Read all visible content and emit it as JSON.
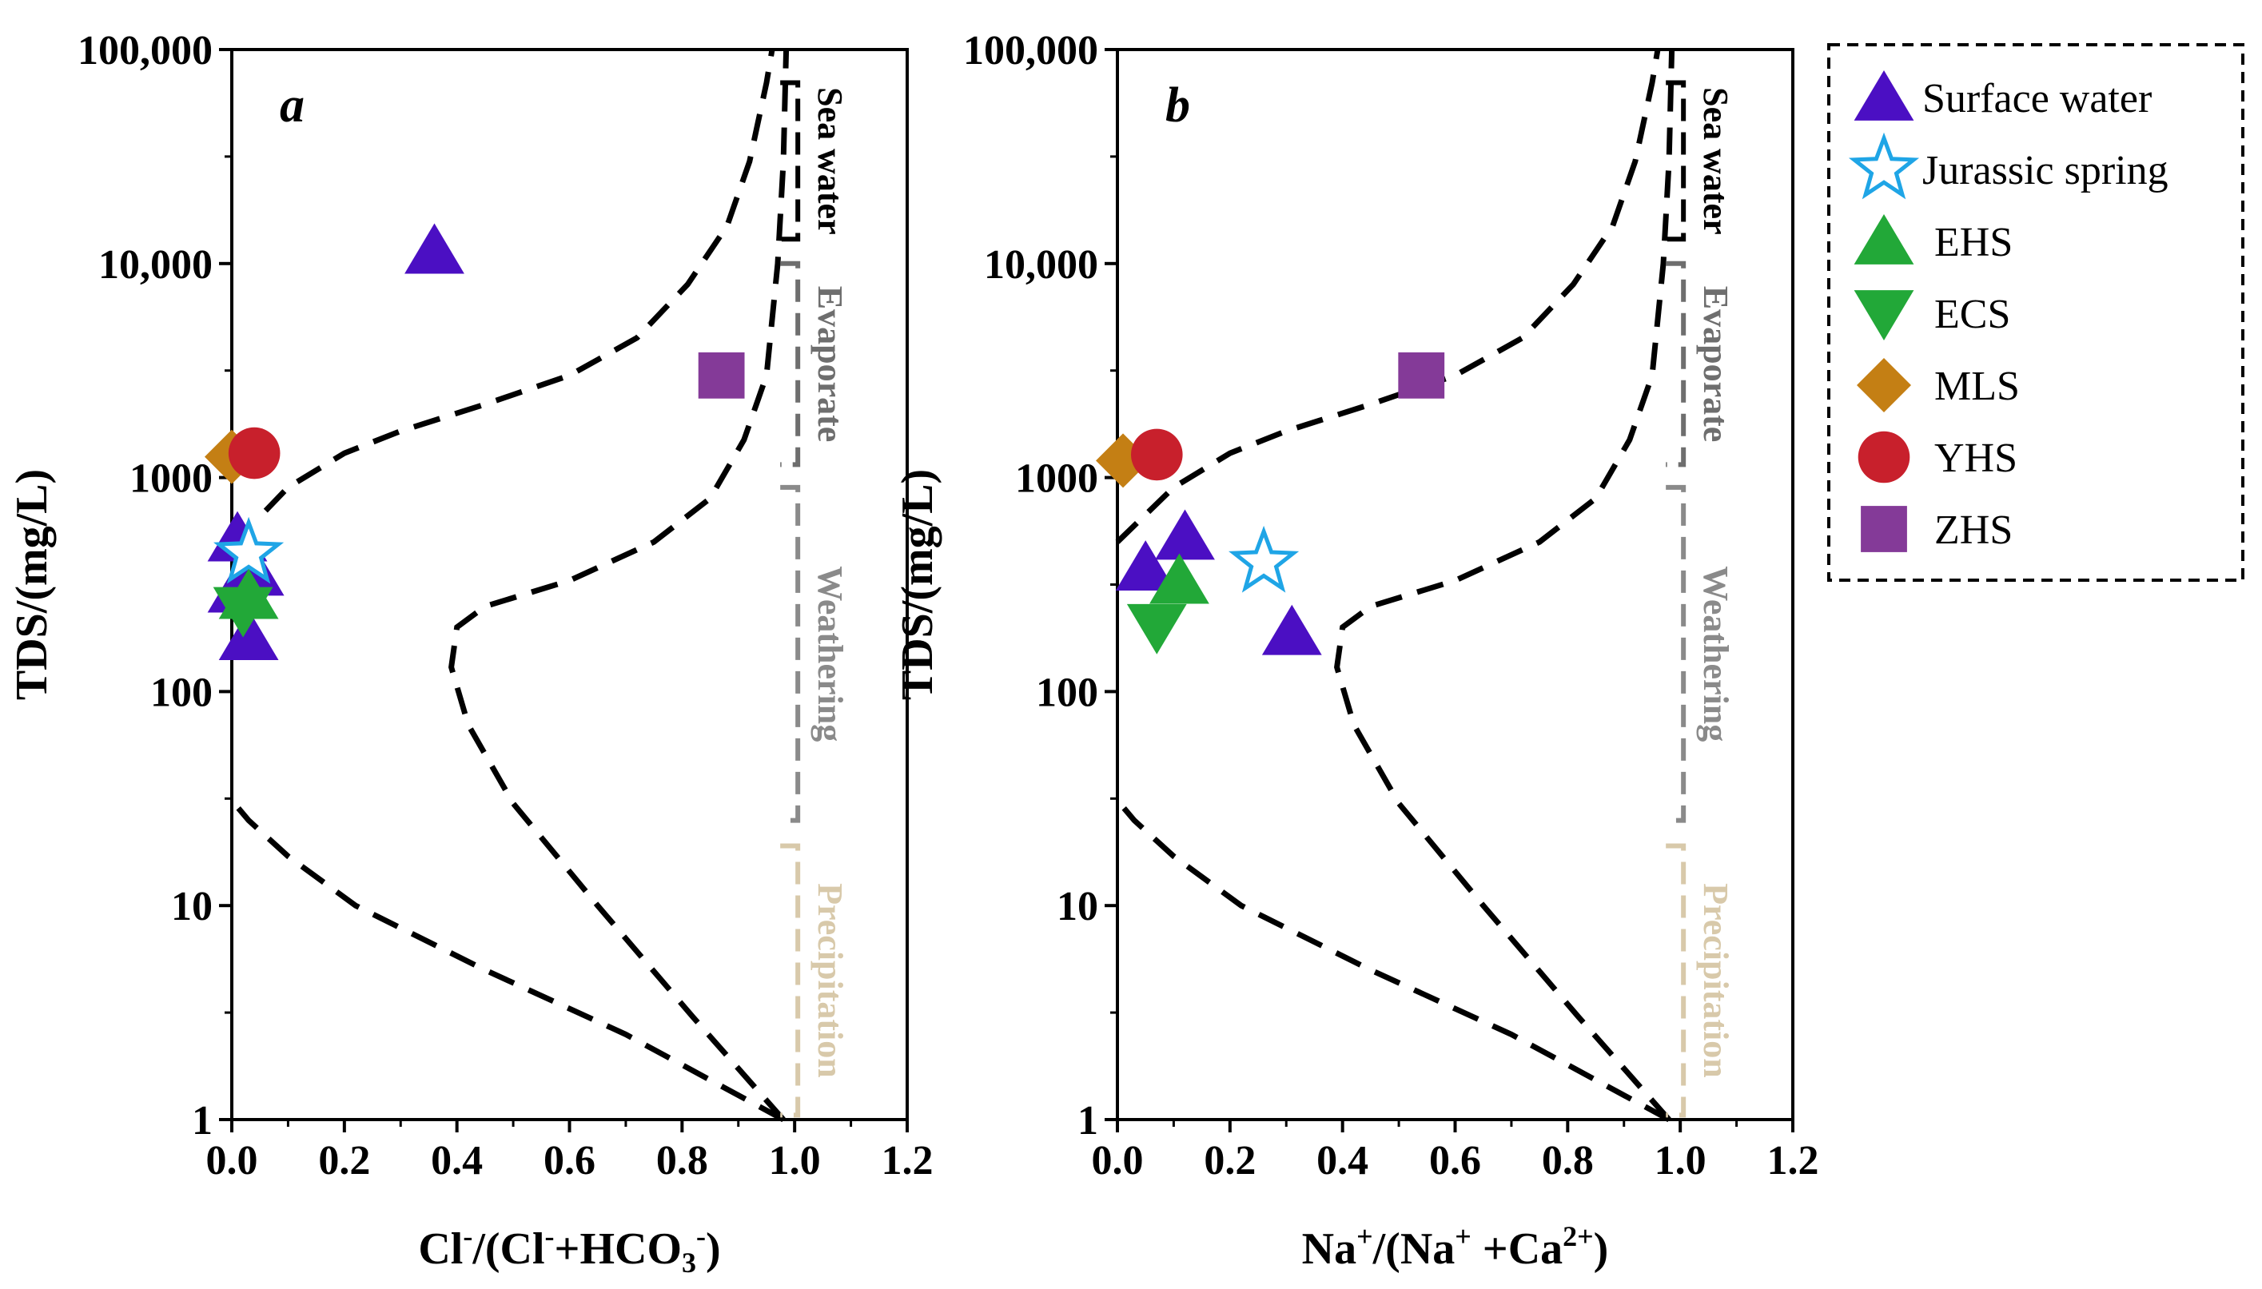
{
  "chart_data": [
    {
      "type": "scatter",
      "panel_label": "a",
      "xlabel_main": "Cl",
      "xlabel_parts": [
        "Cl",
        "-",
        "/(Cl",
        "-",
        "+HCO",
        "3",
        "-",
        ")"
      ],
      "ylabel": "TDS/(mg/L)",
      "xlim": [
        0,
        1.2
      ],
      "ylim": [
        1,
        100000
      ],
      "y_scale": "log",
      "x_ticks": [
        "0.0",
        "0.2",
        "0.4",
        "0.6",
        "0.8",
        "1.0",
        "1.2"
      ],
      "y_ticks": [
        "1",
        "10",
        "100",
        "1000",
        "10,000",
        "100,000"
      ],
      "zones": [
        "Sea water",
        "Evaporate",
        "Weathering",
        "Precipitation"
      ],
      "series": [
        {
          "name": "Surface water",
          "points": [
            [
              0.36,
              11500
            ],
            [
              0.01,
              520
            ],
            [
              0.04,
              360
            ],
            [
              0.01,
              300
            ],
            [
              0.03,
              180
            ]
          ]
        },
        {
          "name": "Jurassic spring",
          "points": [
            [
              0.03,
              440
            ]
          ]
        },
        {
          "name": "EHS",
          "points": [
            [
              0.03,
              280
            ]
          ]
        },
        {
          "name": "ECS",
          "points": [
            [
              0.02,
              240
            ]
          ]
        },
        {
          "name": "MLS",
          "points": [
            [
              0.0,
              1250
            ]
          ]
        },
        {
          "name": "YHS",
          "points": [
            [
              0.04,
              1300
            ]
          ]
        },
        {
          "name": "ZHS",
          "points": [
            [
              0.87,
              3000
            ]
          ]
        }
      ]
    },
    {
      "type": "scatter",
      "panel_label": "b",
      "xlabel_parts": [
        "Na",
        "+",
        "/(Na",
        "+",
        " +Ca",
        "2+",
        ")"
      ],
      "ylabel": "TDS/(mg/L)",
      "xlim": [
        0,
        1.2
      ],
      "ylim": [
        1,
        100000
      ],
      "y_scale": "log",
      "x_ticks": [
        "0.0",
        "0.2",
        "0.4",
        "0.6",
        "0.8",
        "1.0",
        "1.2"
      ],
      "y_ticks": [
        "1",
        "10",
        "100",
        "1000",
        "10,000",
        "100,000"
      ],
      "zones": [
        "Sea water",
        "Evaporate",
        "Weathering",
        "Precipitation"
      ],
      "series": [
        {
          "name": "Surface water",
          "points": [
            [
              0.05,
              380
            ],
            [
              0.12,
              530
            ],
            [
              0.31,
              190
            ]
          ]
        },
        {
          "name": "Jurassic spring",
          "points": [
            [
              0.26,
              400
            ]
          ]
        },
        {
          "name": "EHS",
          "points": [
            [
              0.11,
              330
            ]
          ]
        },
        {
          "name": "ECS",
          "points": [
            [
              0.07,
              200
            ]
          ]
        },
        {
          "name": "MLS",
          "points": [
            [
              0.01,
              1200
            ]
          ]
        },
        {
          "name": "YHS",
          "points": [
            [
              0.07,
              1280
            ]
          ]
        },
        {
          "name": "ZHS",
          "points": [
            [
              0.54,
              3000
            ]
          ]
        }
      ]
    }
  ],
  "legend": {
    "items": [
      {
        "name": "Surface water",
        "marker": "triangle-up",
        "color": "#4b0fc3"
      },
      {
        "name": "Jurassic spring",
        "marker": "star-open",
        "color": "#1fa5e6"
      },
      {
        "name": "EHS",
        "marker": "triangle-up",
        "color": "#22a838"
      },
      {
        "name": "ECS",
        "marker": "triangle-down",
        "color": "#22a838"
      },
      {
        "name": "MLS",
        "marker": "diamond",
        "color": "#c47f14"
      },
      {
        "name": "YHS",
        "marker": "circle",
        "color": "#c8202c"
      },
      {
        "name": "ZHS",
        "marker": "square",
        "color": "#843a98"
      }
    ]
  },
  "colors": {
    "sea_water": "#000000",
    "evaporate": "#6e6e6e",
    "weathering": "#8a8a8a",
    "precipitation": "#d8c9aa",
    "boundary": "#000000"
  }
}
